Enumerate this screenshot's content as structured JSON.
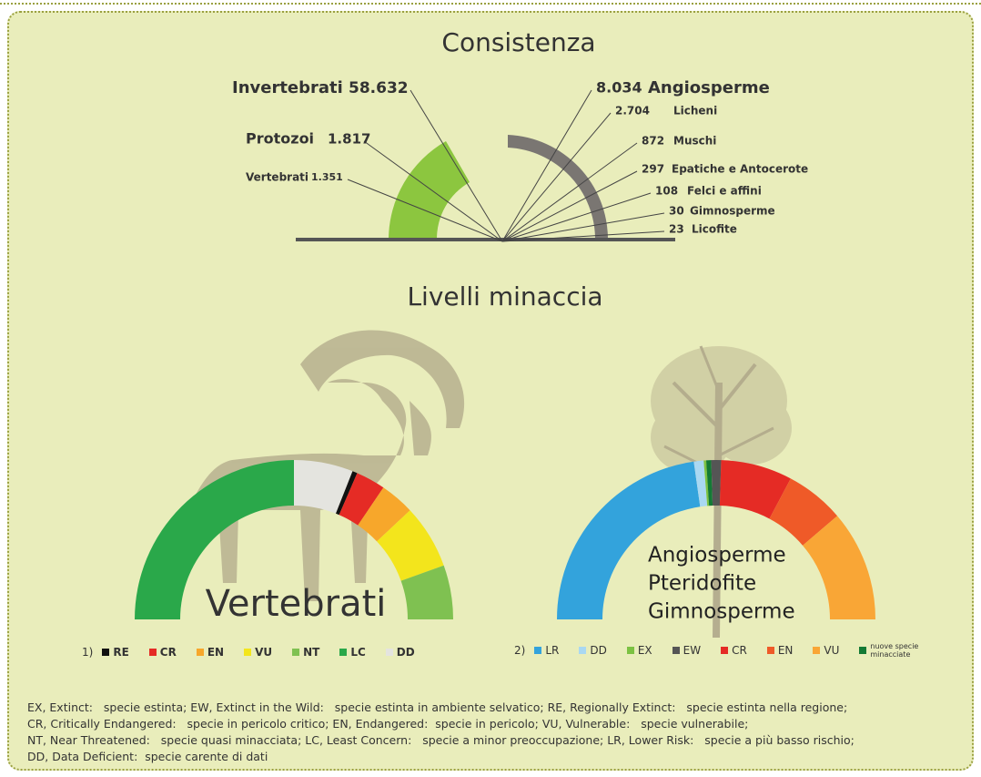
{
  "consistenza": {
    "title": "Consistenza",
    "left": [
      {
        "name": "Invertebrati",
        "count": "58.632"
      },
      {
        "name": "Protozoi",
        "count": "1.817"
      },
      {
        "name": "Vertebrati",
        "count": "1.351"
      }
    ],
    "right": [
      {
        "name": "Angiosperme",
        "count": "8.034"
      },
      {
        "name": "Licheni",
        "count": "2.704"
      },
      {
        "name": "Muschi",
        "count": "872"
      },
      {
        "name": "Epatiche e Antocerote",
        "count": "297"
      },
      {
        "name": "Felci e affini",
        "count": "108"
      },
      {
        "name": "Gimnosperme",
        "count": "30"
      },
      {
        "name": "Licofite",
        "count": "23"
      }
    ]
  },
  "minaccia": {
    "title": "Livelli minaccia",
    "vertebrati": {
      "label": "Vertebrati",
      "legend_number": "1)",
      "segments": [
        {
          "code": "LC",
          "color": "#2aa84a",
          "share": 50
        },
        {
          "code": "DD",
          "color": "#e4e4df",
          "share": 12
        },
        {
          "code": "RE",
          "color": "#111111",
          "share": 1
        },
        {
          "code": "CR",
          "color": "#e52b25",
          "share": 6
        },
        {
          "code": "EN",
          "color": "#f7a72b",
          "share": 7
        },
        {
          "code": "VU",
          "color": "#f3e51c",
          "share": 13
        },
        {
          "code": "NT",
          "color": "#7fc151",
          "share": 11
        }
      ],
      "legend": [
        "RE",
        "CR",
        "EN",
        "VU",
        "NT",
        "LC",
        "DD"
      ]
    },
    "piante": {
      "label": [
        "Angiosperme",
        "Pteridofite",
        "Gimnosperme"
      ],
      "legend_number": "2)",
      "segments": [
        {
          "code": "LR",
          "color": "#33a3dc",
          "share": 45.5
        },
        {
          "code": "DD",
          "color": "#a9d8f2",
          "share": 2
        },
        {
          "code": "EX",
          "color": "#7cc242",
          "share": 0.5
        },
        {
          "code": "nuove specie minacciate",
          "color": "#137a35",
          "share": 1
        },
        {
          "code": "EW",
          "color": "#555555",
          "share": 2
        },
        {
          "code": "CR",
          "color": "#e52b25",
          "share": 14.5
        },
        {
          "code": "EN",
          "color": "#ef5a28",
          "share": 12
        },
        {
          "code": "VU",
          "color": "#f9a636",
          "share": 22.5
        }
      ],
      "legend": [
        "LR",
        "DD",
        "EX",
        "EW",
        "CR",
        "EN",
        "VU",
        "nuove specie minacciate"
      ]
    }
  },
  "glossary": [
    "EX, Extinct:   specie estinta; EW, Extinct in the Wild:   specie estinta in ambiente selvatico; RE, Regionally Extinct:   specie estinta nella regione;",
    "CR, Critically Endangered:   specie in pericolo critico; EN, Endangered:  specie in pericolo; VU, Vulnerable:   specie vulnerabile;",
    "NT, Near Threatened:   specie quasi minacciata; LC, Least Concern:   specie a minor preoccupazione; LR, Lower Risk:   specie a più basso rischio;",
    "DD, Data Deficient:  specie carente di dati"
  ]
}
